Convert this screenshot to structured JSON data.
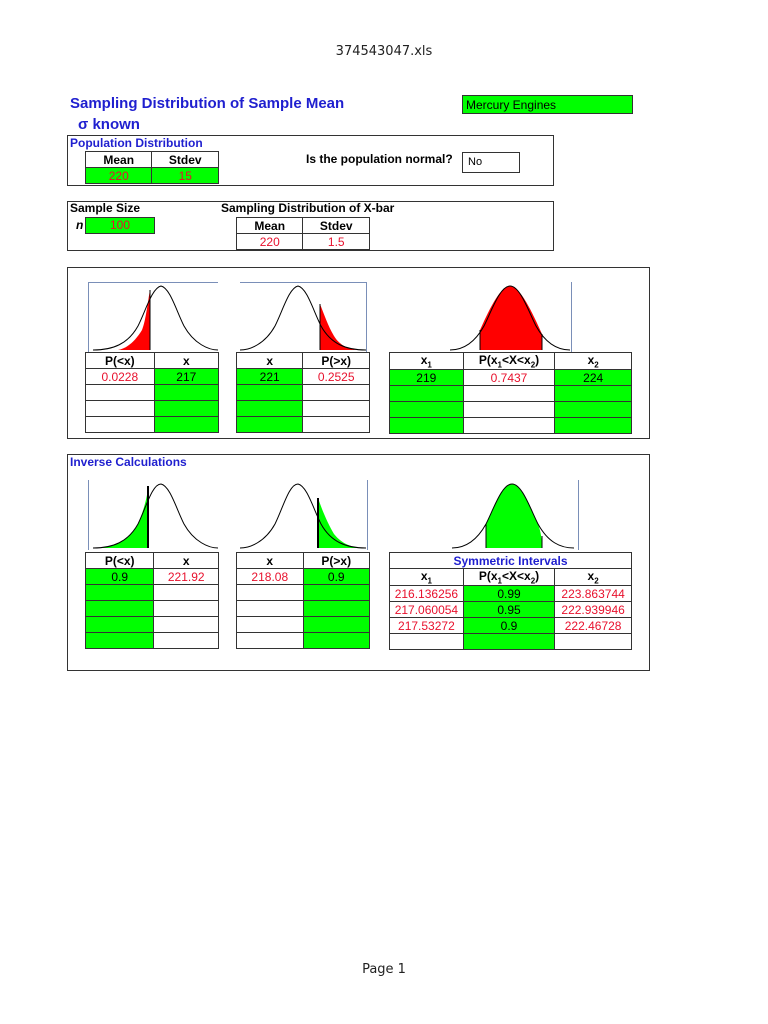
{
  "file_title": "374543047.xls",
  "page_label": "Page 1",
  "title": "Sampling Distribution of Sample Mean",
  "subtitle_sigma": "σ",
  "subtitle_rest": "known",
  "company": "Mercury Engines",
  "population": {
    "label": "Population Distribution",
    "mean_header": "Mean",
    "stdev_header": "Stdev",
    "mean": "220",
    "stdev": "15",
    "normal_question": "Is the population normal?",
    "normal_answer": "No"
  },
  "sample": {
    "size_label": "Sample Size",
    "n_label": "n",
    "n": "100",
    "xbar_label": "Sampling Distribution of X-bar",
    "mean_header": "Mean",
    "stdev_header": "Stdev",
    "mean": "220",
    "stdev": "1.5"
  },
  "prob": {
    "left": {
      "h1": "P(<x)",
      "h2": "x",
      "p": "0.0228",
      "x": "217"
    },
    "right": {
      "h1": "x",
      "h2": "P(>x)",
      "x": "221",
      "p": "0.2525"
    },
    "between": {
      "x1": "219",
      "p": "0.7437",
      "x2": "224"
    }
  },
  "inverse": {
    "label": "Inverse Calculations",
    "left": {
      "h1": "P(<x)",
      "h2": "x",
      "p": "0.9",
      "x": "221.92"
    },
    "right": {
      "h1": "x",
      "h2": "P(>x)",
      "x": "218.08",
      "p": "0.9"
    },
    "symmetric": {
      "label": "Symmetric Intervals",
      "rows": [
        {
          "x1": "216.136256",
          "p": "0.99",
          "x2": "223.863744"
        },
        {
          "x1": "217.060054",
          "p": "0.95",
          "x2": "222.939946"
        },
        {
          "x1": "217.53272",
          "p": "0.9",
          "x2": "222.46728"
        }
      ]
    }
  },
  "colors": {
    "fill_red": "#ff0000",
    "fill_green": "#00ff00",
    "title_blue": "#1f1fcf",
    "value_red": "#e8112d"
  }
}
